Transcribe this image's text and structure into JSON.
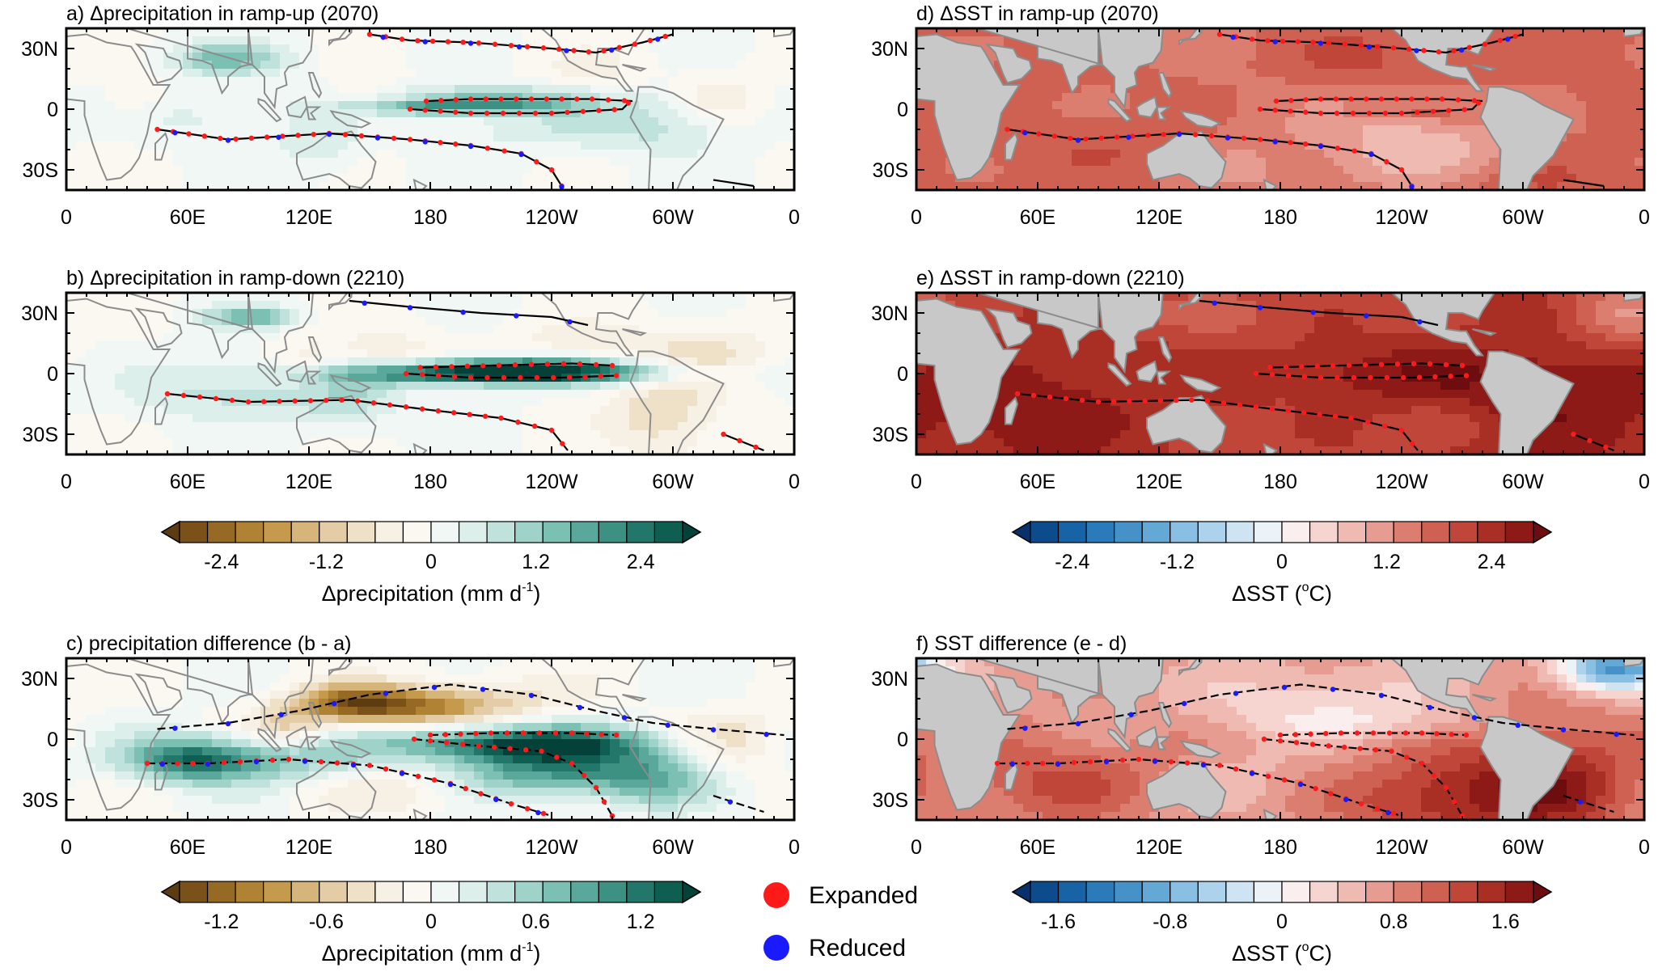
{
  "panels": [
    {
      "id": "a",
      "title": "a) Δprecipitation in ramp-up (2070)",
      "var": "precip",
      "scene": "a"
    },
    {
      "id": "b",
      "title": "b) Δprecipitation in ramp-down (2210)",
      "var": "precip",
      "scene": "b"
    },
    {
      "id": "c",
      "title": "c) precipitation difference (b - a)",
      "var": "precip",
      "scene": "c"
    },
    {
      "id": "d",
      "title": "d) ΔSST in ramp-up (2070)",
      "var": "sst",
      "scene": "a"
    },
    {
      "id": "e",
      "title": "e) ΔSST in ramp-down (2210)",
      "var": "sst",
      "scene": "b"
    },
    {
      "id": "f",
      "title": "f) SST difference (e - d)",
      "var": "sst",
      "scene": "c"
    }
  ],
  "axes": {
    "x_ticks": [
      "0",
      "60E",
      "120E",
      "180",
      "120W",
      "60W",
      "0"
    ],
    "y_ticks": [
      "30N",
      "0",
      "30S"
    ],
    "lon_range": [
      0,
      360
    ],
    "lat_range": [
      -40,
      40
    ]
  },
  "colorbars": [
    {
      "id": "precip-main",
      "label_main": "Δprecipitation (mm d",
      "label_sup": "-1",
      "label_end": ")",
      "ticks": [
        "-2.4",
        "-1.2",
        "0",
        "1.2",
        "2.4"
      ],
      "range": [
        -3.2,
        3.2
      ],
      "colors": [
        "#5e3c11",
        "#7a5118",
        "#966a24",
        "#b08233",
        "#c59a4c",
        "#d6b57a",
        "#e4cda6",
        "#efe0c8",
        "#f7f0e4",
        "#fbf8f2",
        "#f0f7f5",
        "#dcefeb",
        "#bfe3dc",
        "#9fd3c9",
        "#7cbfb3",
        "#5aa89b",
        "#3d9183",
        "#23776a",
        "#0f5e52",
        "#044239"
      ]
    },
    {
      "id": "sst-main",
      "label_main": "ΔSST (",
      "label_sup": "o",
      "label_end": "C)",
      "ticks": [
        "-2.4",
        "-1.2",
        "0",
        "1.2",
        "2.4"
      ],
      "range": [
        -3.2,
        3.2
      ],
      "colors": [
        "#08306b",
        "#0c4b8c",
        "#1763a6",
        "#2b7bba",
        "#4692c8",
        "#64a8d6",
        "#89bfe2",
        "#adD3ec",
        "#cfe4f2",
        "#ebf3f9",
        "#fbeeee",
        "#f6d5d1",
        "#efbab2",
        "#e69c91",
        "#db7e70",
        "#cf6152",
        "#bf4638",
        "#a92f25",
        "#8e1a17",
        "#6e0d0f"
      ]
    },
    {
      "id": "precip-diff",
      "label_main": "Δprecipitation (mm d",
      "label_sup": "-1",
      "label_end": ")",
      "ticks": [
        "-1.2",
        "-0.6",
        "0",
        "0.6",
        "1.2"
      ],
      "range": [
        -1.6,
        1.6
      ],
      "colors": [
        "#5e3c11",
        "#7a5118",
        "#966a24",
        "#b08233",
        "#c59a4c",
        "#d6b57a",
        "#e4cda6",
        "#efe0c8",
        "#f7f0e4",
        "#fbf8f2",
        "#f0f7f5",
        "#dcefeb",
        "#bfe3dc",
        "#9fd3c9",
        "#7cbfb3",
        "#5aa89b",
        "#3d9183",
        "#23776a",
        "#0f5e52",
        "#044239"
      ]
    },
    {
      "id": "sst-diff",
      "label_main": "ΔSST (",
      "label_sup": "o",
      "label_end": "C)",
      "ticks": [
        "-1.6",
        "-0.8",
        "0",
        "0.8",
        "1.6"
      ],
      "range": [
        -2.0,
        2.0
      ],
      "colors": [
        "#08306b",
        "#0c4b8c",
        "#1763a6",
        "#2b7bba",
        "#4692c8",
        "#64a8d6",
        "#89bfe2",
        "#adD3ec",
        "#cfe4f2",
        "#ebf3f9",
        "#fbeeee",
        "#f6d5d1",
        "#efbab2",
        "#e69c91",
        "#db7e70",
        "#cf6152",
        "#bf4638",
        "#a92f25",
        "#8e1a17",
        "#6e0d0f"
      ]
    }
  ],
  "legend": {
    "items": [
      {
        "label": "Expanded",
        "color": "#ff1a1a"
      },
      {
        "label": "Reduced",
        "color": "#1a1aff"
      }
    ]
  },
  "colors": {
    "land_sst": "#c8c8c8",
    "coast": "#8c8c8c",
    "contour": "#000000",
    "expanded": "#ff1a1a",
    "reduced": "#1a1aff"
  }
}
